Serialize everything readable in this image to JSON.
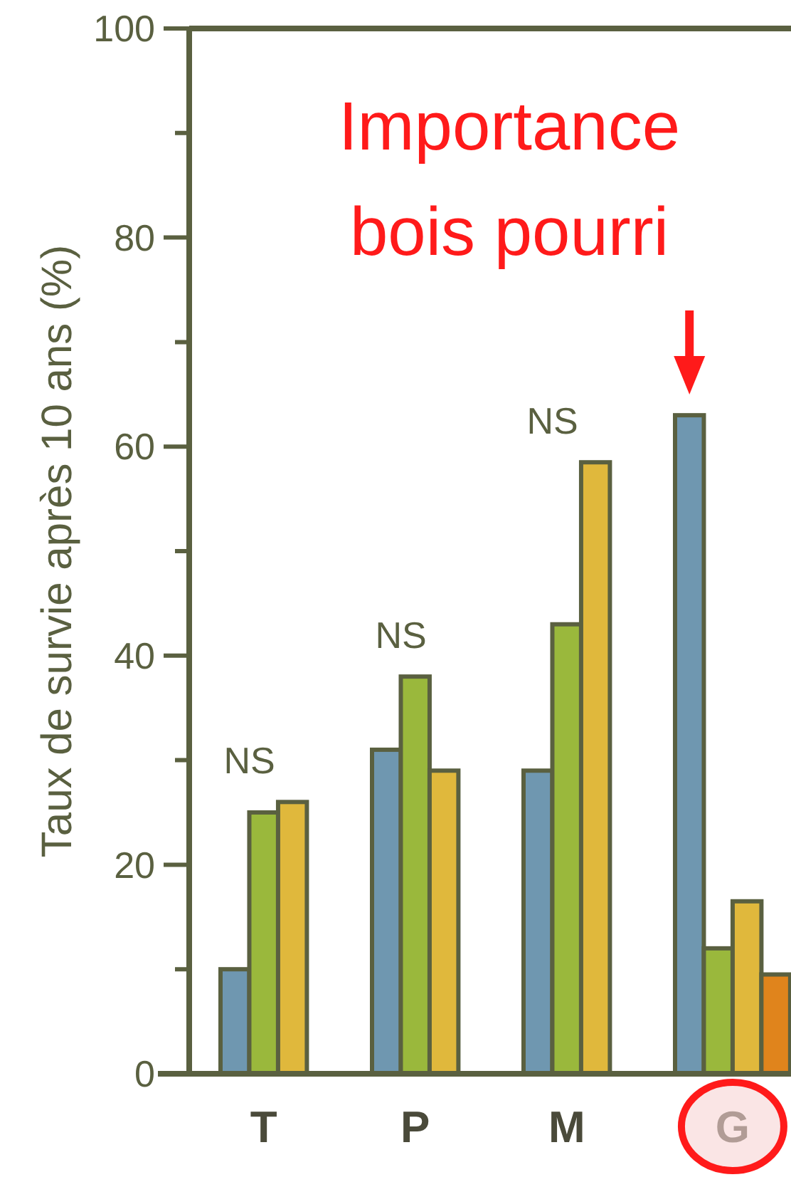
{
  "chart_data": {
    "type": "bar",
    "ylabel": "Taux de survie après 10 ans (%)",
    "categories": [
      "T",
      "P",
      "M",
      "G"
    ],
    "series": [
      {
        "color": "#6f97b0",
        "values": [
          10,
          31,
          29,
          63
        ]
      },
      {
        "color": "#9ab83c",
        "values": [
          25,
          38,
          43,
          12
        ]
      },
      {
        "color": "#e0b83c",
        "values": [
          26,
          29,
          58.5,
          16.5
        ]
      },
      {
        "color": "#e0841c",
        "values": [
          null,
          null,
          null,
          9.5
        ]
      }
    ],
    "ylim": [
      0,
      100
    ],
    "yticks": [
      0,
      {
        "value": 10,
        "label": null
      },
      20,
      {
        "value": 30,
        "label": null
      },
      40,
      {
        "value": 50,
        "label": null
      },
      60,
      {
        "value": 70,
        "label": null
      },
      80,
      {
        "value": 90,
        "label": null
      },
      100
    ],
    "grid": false,
    "annotations": [
      "Importance bois pourri",
      "NS",
      "NS",
      "NS"
    ]
  }
}
